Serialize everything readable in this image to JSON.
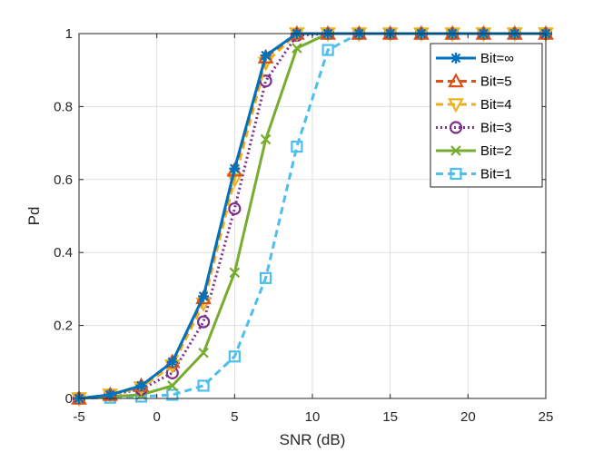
{
  "chart_data": {
    "type": "line",
    "title": "",
    "xlabel": "SNR (dB)",
    "ylabel": "Pd",
    "xlim": [
      -5,
      25
    ],
    "ylim": [
      0,
      1
    ],
    "grid": true,
    "legend_position": "top-right",
    "x": [
      -5,
      -3,
      -1,
      1,
      3,
      5,
      7,
      9,
      11,
      13,
      15,
      17,
      19,
      21,
      23,
      25
    ],
    "x_ticks": [
      -5,
      0,
      5,
      10,
      15,
      20,
      25
    ],
    "x_tick_labels": [
      "-5",
      "0",
      "5",
      "10",
      "15",
      "20",
      "25"
    ],
    "y_ticks": [
      0,
      0.2,
      0.4,
      0.6,
      0.8,
      1
    ],
    "y_tick_labels": [
      "0",
      "0.2",
      "0.4",
      "0.6",
      "0.8",
      "1"
    ],
    "series": [
      {
        "name": "Bit=∞",
        "color": "#0072BD",
        "line": "solid",
        "marker": "star",
        "values": [
          0.0,
          0.01,
          0.035,
          0.1,
          0.28,
          0.63,
          0.94,
          1.0,
          1.0,
          1.0,
          1.0,
          1.0,
          1.0,
          1.0,
          1.0,
          1.0
        ]
      },
      {
        "name": "Bit=5",
        "color": "#D95319",
        "line": "dashed",
        "marker": "triangle-up",
        "values": [
          0.0,
          0.01,
          0.035,
          0.1,
          0.275,
          0.625,
          0.935,
          1.0,
          1.0,
          1.0,
          1.0,
          1.0,
          1.0,
          1.0,
          1.0,
          1.0
        ]
      },
      {
        "name": "Bit=4",
        "color": "#EDB120",
        "line": "dashed",
        "marker": "triangle-down",
        "values": [
          0.0,
          0.01,
          0.03,
          0.09,
          0.26,
          0.6,
          0.92,
          1.0,
          1.0,
          1.0,
          1.0,
          1.0,
          1.0,
          1.0,
          1.0,
          1.0
        ]
      },
      {
        "name": "Bit=3",
        "color": "#7E2F8E",
        "line": "dotted",
        "marker": "circle",
        "values": [
          0.0,
          0.01,
          0.025,
          0.07,
          0.21,
          0.52,
          0.87,
          0.995,
          1.0,
          1.0,
          1.0,
          1.0,
          1.0,
          1.0,
          1.0,
          1.0
        ]
      },
      {
        "name": "Bit=2",
        "color": "#77AC30",
        "line": "solid",
        "marker": "x",
        "values": [
          0.0,
          0.005,
          0.01,
          0.035,
          0.125,
          0.345,
          0.71,
          0.96,
          1.0,
          1.0,
          1.0,
          1.0,
          1.0,
          1.0,
          1.0,
          1.0
        ]
      },
      {
        "name": "Bit=1",
        "color": "#4DBEEE",
        "line": "dashed",
        "marker": "square",
        "values": [
          0.0,
          0.002,
          0.005,
          0.01,
          0.035,
          0.115,
          0.33,
          0.69,
          0.955,
          1.0,
          1.0,
          1.0,
          1.0,
          1.0,
          1.0,
          1.0
        ]
      }
    ]
  }
}
